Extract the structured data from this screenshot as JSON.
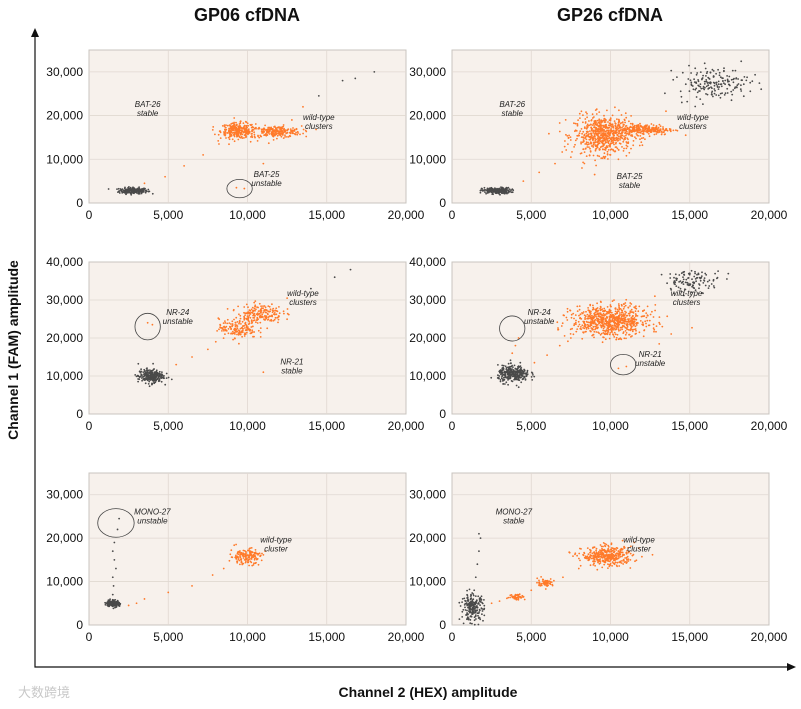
{
  "figure": {
    "x_axis_title": "Channel 2 (HEX) amplitude",
    "y_axis_title": "Channel 1 (FAM) amplitude",
    "column_titles": [
      "GP06 cfDNA",
      "GP26 cfDNA"
    ],
    "watermark": "大数跨境",
    "colors": {
      "negative": "#4a4a4a",
      "positive": "#ff7a2a",
      "background": "#f7f1ec"
    }
  },
  "chart_data": [
    {
      "type": "scatter",
      "title": "GP06 cfDNA",
      "xlim": [
        0,
        20000
      ],
      "ylim": [
        0,
        35000
      ],
      "x_ticks": [
        0,
        5000,
        10000,
        15000,
        20000
      ],
      "x_tick_labels": [
        "0",
        "5,000",
        "10,000",
        "15,000",
        "20,000"
      ],
      "y_ticks": [
        0,
        10000,
        20000,
        30000
      ],
      "y_tick_labels": [
        "0",
        "10,000",
        "20,000",
        "30,000"
      ],
      "grid": true,
      "clusters": [
        {
          "color": "negative",
          "cx": 2800,
          "cy": 2800,
          "sx": 450,
          "sy": 350,
          "n": 220
        },
        {
          "color": "positive",
          "cx": 9400,
          "cy": 16500,
          "sx": 550,
          "sy": 900,
          "n": 260
        },
        {
          "color": "positive",
          "cx": 11800,
          "cy": 16300,
          "sx": 800,
          "sy": 650,
          "n": 240
        }
      ],
      "sparse_points": [
        [
          3500,
          4500
        ],
        [
          4800,
          6000
        ],
        [
          6000,
          8500
        ],
        [
          7200,
          11000
        ],
        [
          8200,
          13500
        ],
        [
          12800,
          19000
        ],
        [
          13500,
          22000
        ],
        [
          14500,
          24500
        ],
        [
          16000,
          28000
        ],
        [
          16800,
          28500
        ],
        [
          18000,
          30000
        ],
        [
          9300,
          3500
        ],
        [
          9800,
          3300
        ],
        [
          11000,
          9000
        ],
        [
          10200,
          14000
        ]
      ],
      "annotations": [
        {
          "text": [
            "BAT-26",
            "stable"
          ],
          "x": 3700,
          "y": 22000
        },
        {
          "text": [
            "wild-type",
            "clusters"
          ],
          "x": 14500,
          "y": 19000
        },
        {
          "text": [
            "BAT-25",
            "unstable"
          ],
          "x": 11200,
          "y": 6000
        }
      ],
      "circles": [
        {
          "x": 9500,
          "y": 3300,
          "rx": 800,
          "ry": 2100
        }
      ]
    },
    {
      "type": "scatter",
      "title": "GP26 cfDNA",
      "xlim": [
        0,
        20000
      ],
      "ylim": [
        0,
        35000
      ],
      "x_ticks": [
        0,
        5000,
        10000,
        15000,
        20000
      ],
      "x_tick_labels": [
        "0",
        "5,000",
        "10,000",
        "15,000",
        "20,000"
      ],
      "y_ticks": [
        0,
        10000,
        20000,
        30000
      ],
      "y_tick_labels": [
        "0",
        "10,000",
        "20,000",
        "30,000"
      ],
      "grid": true,
      "clusters": [
        {
          "color": "negative",
          "cx": 2800,
          "cy": 2800,
          "sx": 450,
          "sy": 350,
          "n": 220
        },
        {
          "color": "positive",
          "cx": 9500,
          "cy": 15500,
          "sx": 900,
          "sy": 2200,
          "n": 650
        },
        {
          "color": "positive",
          "cx": 12200,
          "cy": 16800,
          "sx": 900,
          "sy": 600,
          "n": 260
        },
        {
          "color": "negative",
          "cx": 16500,
          "cy": 27500,
          "sx": 1100,
          "sy": 1800,
          "n": 180
        }
      ],
      "sparse_points": [
        [
          4500,
          5000
        ],
        [
          5500,
          7000
        ],
        [
          6500,
          9000
        ],
        [
          7500,
          10500
        ],
        [
          8200,
          8000
        ],
        [
          9000,
          6500
        ],
        [
          10000,
          11000
        ],
        [
          11000,
          12500
        ],
        [
          13500,
          21000
        ],
        [
          14500,
          23000
        ]
      ],
      "annotations": [
        {
          "text": [
            "BAT-26",
            "stable"
          ],
          "x": 3800,
          "y": 22000
        },
        {
          "text": [
            "wild-type",
            "clusters"
          ],
          "x": 15200,
          "y": 19000
        },
        {
          "text": [
            "BAT-25",
            "stable"
          ],
          "x": 11200,
          "y": 5500
        }
      ],
      "circles": []
    },
    {
      "type": "scatter",
      "title": "",
      "xlim": [
        0,
        20000
      ],
      "ylim": [
        0,
        40000
      ],
      "x_ticks": [
        0,
        5000,
        10000,
        15000,
        20000
      ],
      "x_tick_labels": [
        "0",
        "5,000",
        "10,000",
        "15,000",
        "20,000"
      ],
      "y_ticks": [
        0,
        10000,
        20000,
        30000,
        40000
      ],
      "y_tick_labels": [
        "0",
        "10,000",
        "20,000",
        "30,000",
        "40,000"
      ],
      "grid": true,
      "clusters": [
        {
          "color": "negative",
          "cx": 3900,
          "cy": 10000,
          "sx": 400,
          "sy": 900,
          "n": 260
        },
        {
          "color": "positive",
          "cx": 9400,
          "cy": 22500,
          "sx": 600,
          "sy": 1300,
          "n": 160
        },
        {
          "color": "positive",
          "cx": 10800,
          "cy": 26500,
          "sx": 700,
          "sy": 1300,
          "n": 180
        }
      ],
      "sparse_points": [
        [
          5500,
          13000
        ],
        [
          6500,
          15000
        ],
        [
          7500,
          17000
        ],
        [
          8000,
          19000
        ],
        [
          12500,
          30500
        ],
        [
          14000,
          33000
        ],
        [
          15500,
          36000
        ],
        [
          16500,
          38000
        ],
        [
          3700,
          24000
        ],
        [
          4000,
          23500
        ],
        [
          11000,
          11000
        ]
      ],
      "annotations": [
        {
          "text": [
            "NR-24",
            "unstable"
          ],
          "x": 5600,
          "y": 26000
        },
        {
          "text": [
            "wild-type",
            "clusters"
          ],
          "x": 13500,
          "y": 31000
        },
        {
          "text": [
            "NR-21",
            "stable"
          ],
          "x": 12800,
          "y": 13000
        }
      ],
      "circles": [
        {
          "x": 3700,
          "y": 23000,
          "rx": 800,
          "ry": 3500
        }
      ]
    },
    {
      "type": "scatter",
      "title": "",
      "xlim": [
        0,
        20000
      ],
      "ylim": [
        0,
        40000
      ],
      "x_ticks": [
        0,
        5000,
        10000,
        15000,
        20000
      ],
      "x_tick_labels": [
        "0",
        "5,000",
        "10,000",
        "15,000",
        "20,000"
      ],
      "y_ticks": [
        0,
        10000,
        20000,
        30000,
        40000
      ],
      "y_tick_labels": [
        "0",
        "10,000",
        "20,000",
        "30,000",
        "40,000"
      ],
      "grid": true,
      "clusters": [
        {
          "color": "negative",
          "cx": 3900,
          "cy": 10500,
          "sx": 500,
          "sy": 1100,
          "n": 300
        },
        {
          "color": "positive",
          "cx": 10000,
          "cy": 24500,
          "sx": 1200,
          "sy": 2000,
          "n": 750
        },
        {
          "color": "negative",
          "cx": 15200,
          "cy": 35000,
          "sx": 900,
          "sy": 1400,
          "n": 110
        }
      ],
      "sparse_points": [
        [
          3800,
          16000
        ],
        [
          4000,
          18000
        ],
        [
          4200,
          20000
        ],
        [
          5200,
          13500
        ],
        [
          6000,
          15500
        ],
        [
          6800,
          18000
        ],
        [
          7500,
          20000
        ],
        [
          10500,
          12000
        ],
        [
          11000,
          12500
        ],
        [
          12800,
          31000
        ],
        [
          13800,
          33000
        ]
      ],
      "annotations": [
        {
          "text": [
            "NR-24",
            "unstable"
          ],
          "x": 5500,
          "y": 26000
        },
        {
          "text": [
            "wild-type",
            "clusters"
          ],
          "x": 14800,
          "y": 31000
        },
        {
          "text": [
            "NR-21",
            "unstable"
          ],
          "x": 12500,
          "y": 15000
        }
      ],
      "circles": [
        {
          "x": 3800,
          "y": 22500,
          "rx": 800,
          "ry": 3300
        },
        {
          "x": 10800,
          "y": 13000,
          "rx": 800,
          "ry": 2700
        }
      ]
    },
    {
      "type": "scatter",
      "title": "",
      "xlim": [
        0,
        20000
      ],
      "ylim": [
        0,
        35000
      ],
      "x_ticks": [
        0,
        5000,
        10000,
        15000,
        20000
      ],
      "x_tick_labels": [
        "0",
        "5,000",
        "10,000",
        "15,000",
        "20,000"
      ],
      "y_ticks": [
        0,
        10000,
        20000,
        30000
      ],
      "y_tick_labels": [
        "0",
        "10,000",
        "20,000",
        "30,000"
      ],
      "grid": true,
      "clusters": [
        {
          "color": "negative",
          "cx": 1500,
          "cy": 5000,
          "sx": 200,
          "sy": 400,
          "n": 170
        },
        {
          "color": "positive",
          "cx": 9900,
          "cy": 15800,
          "sx": 500,
          "sy": 900,
          "n": 160
        }
      ],
      "sparse_points": [
        [
          1500,
          7000
        ],
        [
          1550,
          9000
        ],
        [
          1500,
          11000
        ],
        [
          1700,
          13000
        ],
        [
          1600,
          15000
        ],
        [
          1500,
          17000
        ],
        [
          1600,
          19000
        ],
        [
          1800,
          22000
        ],
        [
          1900,
          24500
        ],
        [
          3500,
          6000
        ],
        [
          5000,
          7500
        ],
        [
          6500,
          9000
        ],
        [
          7800,
          11500
        ],
        [
          8500,
          13000
        ],
        [
          2500,
          4500
        ],
        [
          3000,
          5000
        ]
      ],
      "annotations": [
        {
          "text": [
            "MONO-27",
            "unstable"
          ],
          "x": 4000,
          "y": 25500
        },
        {
          "text": [
            "wild-type",
            "cluster"
          ],
          "x": 11800,
          "y": 19000
        }
      ],
      "circles": [
        {
          "x": 1700,
          "y": 23500,
          "rx": 1150,
          "ry": 3300
        }
      ]
    },
    {
      "type": "scatter",
      "title": "",
      "xlim": [
        0,
        20000
      ],
      "ylim": [
        0,
        35000
      ],
      "x_ticks": [
        0,
        5000,
        10000,
        15000,
        20000
      ],
      "x_tick_labels": [
        "0",
        "5,000",
        "10,000",
        "15,000",
        "20,000"
      ],
      "y_ticks": [
        0,
        10000,
        20000,
        30000
      ],
      "y_tick_labels": [
        "0",
        "10,000",
        "20,000",
        "30,000"
      ],
      "grid": true,
      "clusters": [
        {
          "color": "negative",
          "cx": 1300,
          "cy": 4000,
          "sx": 350,
          "sy": 1500,
          "n": 220
        },
        {
          "color": "positive",
          "cx": 4100,
          "cy": 6500,
          "sx": 250,
          "sy": 350,
          "n": 50
        },
        {
          "color": "positive",
          "cx": 5900,
          "cy": 9800,
          "sx": 250,
          "sy": 450,
          "n": 60
        },
        {
          "color": "positive",
          "cx": 9800,
          "cy": 15800,
          "sx": 800,
          "sy": 1100,
          "n": 380
        }
      ],
      "sparse_points": [
        [
          1400,
          8000
        ],
        [
          1500,
          11000
        ],
        [
          1600,
          14000
        ],
        [
          1700,
          17000
        ],
        [
          1800,
          20000
        ],
        [
          1700,
          21000
        ],
        [
          2500,
          5000
        ],
        [
          3000,
          5500
        ],
        [
          5000,
          8000
        ],
        [
          7000,
          11000
        ],
        [
          8000,
          13000
        ],
        [
          11500,
          19000
        ]
      ],
      "annotations": [
        {
          "text": [
            "MONO-27",
            "stable"
          ],
          "x": 3900,
          "y": 25500
        },
        {
          "text": [
            "wild-type",
            "cluster"
          ],
          "x": 11800,
          "y": 19000
        }
      ],
      "circles": []
    }
  ]
}
